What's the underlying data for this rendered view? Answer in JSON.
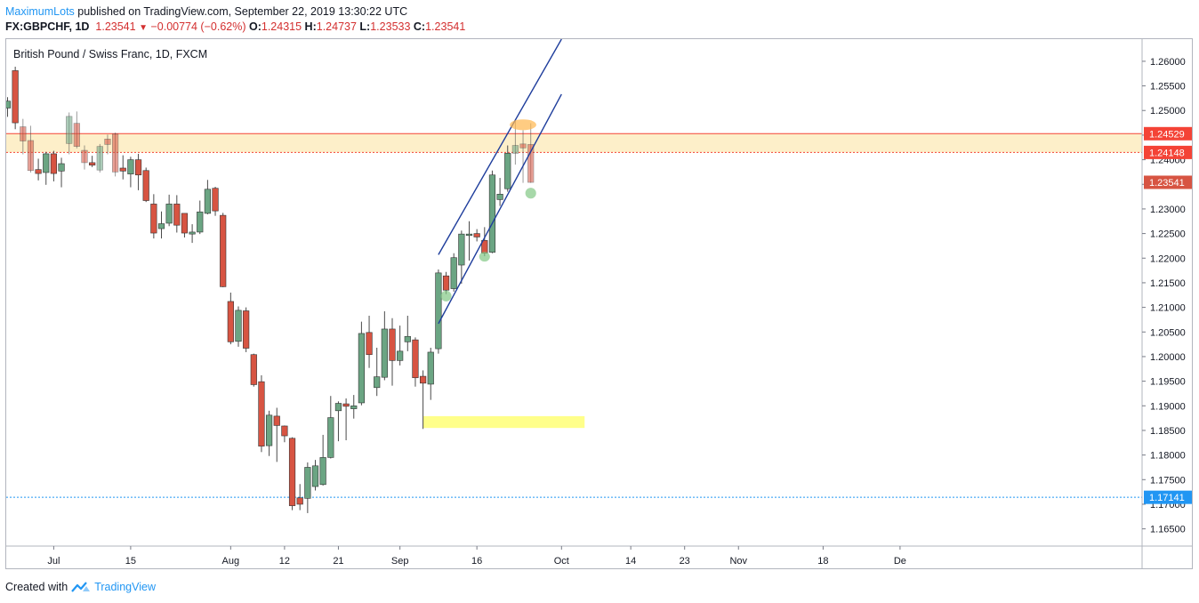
{
  "header": {
    "author": "MaximumLots",
    "published_text": "published on TradingView.com, September 22, 2019 13:30:22 UTC",
    "symbol": "FX:GBPCHF, 1D",
    "last": "1.23541",
    "change": "−0.00774 (−0.62%)",
    "o_label": "O:",
    "o_value": "1.24315",
    "h_label": "H:",
    "h_value": "1.24737",
    "l_label": "L:",
    "l_value": "1.23533",
    "c_label": "C:",
    "c_value": "1.23541"
  },
  "footer": {
    "created_with": "Created with",
    "brand": "TradingView"
  },
  "colors": {
    "up": "#6ba583",
    "down": "#d75442",
    "zone": "#fdefc9",
    "channel": "#1e3d9c",
    "resistance": "#f44336",
    "support": "#2196f3",
    "target": "#ffff8a",
    "highlight_orange": "#ffb74d",
    "highlight_green": "#81c784"
  },
  "chart_data": {
    "type": "candlestick",
    "title": "British Pound / Swiss Franc, 1D, FXCM",
    "ylim": [
      1.1615,
      1.2645
    ],
    "y_ticks": [
      "1.26000",
      "1.25500",
      "1.25000",
      "1.24500",
      "1.24000",
      "1.23500",
      "1.23000",
      "1.22500",
      "1.22000",
      "1.21500",
      "1.21000",
      "1.20500",
      "1.20000",
      "1.19500",
      "1.19000",
      "1.18500",
      "1.18000",
      "1.17500",
      "1.17000",
      "1.16500"
    ],
    "x_ticks": [
      {
        "label": "Jul",
        "date": "2019-07-01"
      },
      {
        "label": "15",
        "date": "2019-07-15"
      },
      {
        "label": "Aug",
        "date": "2019-08-01"
      },
      {
        "label": "12",
        "date": "2019-08-12"
      },
      {
        "label": "21",
        "date": "2019-08-21"
      },
      {
        "label": "Sep",
        "date": "2019-09-02"
      },
      {
        "label": "16",
        "date": "2019-09-16"
      },
      {
        "label": "Oct",
        "date": "2019-10-01"
      },
      {
        "label": "14",
        "date": "2019-10-14"
      },
      {
        "label": "23",
        "date": "2019-10-23"
      },
      {
        "label": "Nov",
        "date": "2019-11-01"
      },
      {
        "label": "18",
        "date": "2019-11-18"
      },
      {
        "label": "De",
        "date": "2019-12-02"
      }
    ],
    "candles": [
      {
        "d": "2019-06-21",
        "o": 1.2505,
        "h": 1.2527,
        "l": 1.2487,
        "c": 1.2519
      },
      {
        "d": "2019-06-24",
        "o": 1.2581,
        "h": 1.2589,
        "l": 1.2462,
        "c": 1.2475
      },
      {
        "d": "2019-06-25",
        "o": 1.2467,
        "h": 1.2483,
        "l": 1.2411,
        "c": 1.2438
      },
      {
        "d": "2019-06-26",
        "o": 1.2439,
        "h": 1.2469,
        "l": 1.2374,
        "c": 1.2378
      },
      {
        "d": "2019-06-27",
        "o": 1.238,
        "h": 1.2402,
        "l": 1.2358,
        "c": 1.2372
      },
      {
        "d": "2019-06-28",
        "o": 1.2374,
        "h": 1.2416,
        "l": 1.2349,
        "c": 1.2412
      },
      {
        "d": "2019-07-01",
        "o": 1.2412,
        "h": 1.2418,
        "l": 1.2356,
        "c": 1.2372
      },
      {
        "d": "2019-07-02",
        "o": 1.2377,
        "h": 1.2404,
        "l": 1.2344,
        "c": 1.2392
      },
      {
        "d": "2019-07-03",
        "o": 1.2433,
        "h": 1.2496,
        "l": 1.2411,
        "c": 1.2488
      },
      {
        "d": "2019-07-04",
        "o": 1.2474,
        "h": 1.2498,
        "l": 1.2423,
        "c": 1.2427
      },
      {
        "d": "2019-07-05",
        "o": 1.2419,
        "h": 1.2429,
        "l": 1.238,
        "c": 1.2394
      },
      {
        "d": "2019-07-08",
        "o": 1.2394,
        "h": 1.2408,
        "l": 1.2385,
        "c": 1.2389
      },
      {
        "d": "2019-07-09",
        "o": 1.2379,
        "h": 1.2432,
        "l": 1.2374,
        "c": 1.2427
      },
      {
        "d": "2019-07-10",
        "o": 1.2442,
        "h": 1.2451,
        "l": 1.2411,
        "c": 1.2431
      },
      {
        "d": "2019-07-11",
        "o": 1.2452,
        "h": 1.2455,
        "l": 1.2366,
        "c": 1.2375
      },
      {
        "d": "2019-07-12",
        "o": 1.2383,
        "h": 1.2409,
        "l": 1.236,
        "c": 1.2377
      },
      {
        "d": "2019-07-15",
        "o": 1.2371,
        "h": 1.2406,
        "l": 1.2344,
        "c": 1.24
      },
      {
        "d": "2019-07-16",
        "o": 1.24,
        "h": 1.2412,
        "l": 1.2338,
        "c": 1.2369
      },
      {
        "d": "2019-07-17",
        "o": 1.2378,
        "h": 1.2384,
        "l": 1.2314,
        "c": 1.2317
      },
      {
        "d": "2019-07-18",
        "o": 1.231,
        "h": 1.233,
        "l": 1.224,
        "c": 1.2251
      },
      {
        "d": "2019-07-19",
        "o": 1.226,
        "h": 1.2295,
        "l": 1.224,
        "c": 1.227
      },
      {
        "d": "2019-07-22",
        "o": 1.2271,
        "h": 1.2329,
        "l": 1.2265,
        "c": 1.231
      },
      {
        "d": "2019-07-23",
        "o": 1.231,
        "h": 1.2328,
        "l": 1.2252,
        "c": 1.2267
      },
      {
        "d": "2019-07-24",
        "o": 1.2291,
        "h": 1.229,
        "l": 1.2242,
        "c": 1.2251
      },
      {
        "d": "2019-07-25",
        "o": 1.2249,
        "h": 1.2269,
        "l": 1.2231,
        "c": 1.2253
      },
      {
        "d": "2019-07-26",
        "o": 1.2253,
        "h": 1.2317,
        "l": 1.2249,
        "c": 1.2294
      },
      {
        "d": "2019-07-29",
        "o": 1.2291,
        "h": 1.2359,
        "l": 1.2289,
        "c": 1.234
      },
      {
        "d": "2019-07-30",
        "o": 1.2342,
        "h": 1.2345,
        "l": 1.2286,
        "c": 1.2296
      },
      {
        "d": "2019-07-31",
        "o": 1.2287,
        "h": 1.2292,
        "l": 1.2141,
        "c": 1.2142
      },
      {
        "d": "2019-08-01",
        "o": 1.2112,
        "h": 1.213,
        "l": 1.2025,
        "c": 1.203
      },
      {
        "d": "2019-08-02",
        "o": 1.2031,
        "h": 1.2102,
        "l": 1.202,
        "c": 1.2094
      },
      {
        "d": "2019-08-05",
        "o": 1.2093,
        "h": 1.21,
        "l": 1.2009,
        "c": 1.2017
      },
      {
        "d": "2019-08-06",
        "o": 1.2004,
        "h": 1.2006,
        "l": 1.1939,
        "c": 1.1943
      },
      {
        "d": "2019-08-07",
        "o": 1.1949,
        "h": 1.1962,
        "l": 1.1806,
        "c": 1.1818
      },
      {
        "d": "2019-08-08",
        "o": 1.1819,
        "h": 1.189,
        "l": 1.1798,
        "c": 1.1881
      },
      {
        "d": "2019-08-09",
        "o": 1.1879,
        "h": 1.1896,
        "l": 1.1786,
        "c": 1.186
      },
      {
        "d": "2019-08-12",
        "o": 1.1859,
        "h": 1.186,
        "l": 1.1826,
        "c": 1.1839
      },
      {
        "d": "2019-08-13",
        "o": 1.1834,
        "h": 1.1836,
        "l": 1.1688,
        "c": 1.1697
      },
      {
        "d": "2019-08-14",
        "o": 1.1713,
        "h": 1.1741,
        "l": 1.1688,
        "c": 1.17
      },
      {
        "d": "2019-08-15",
        "o": 1.1712,
        "h": 1.1785,
        "l": 1.1682,
        "c": 1.1775
      },
      {
        "d": "2019-08-16",
        "o": 1.1736,
        "h": 1.179,
        "l": 1.1728,
        "c": 1.1778
      },
      {
        "d": "2019-08-19",
        "o": 1.174,
        "h": 1.1841,
        "l": 1.1738,
        "c": 1.1795
      },
      {
        "d": "2019-08-20",
        "o": 1.1795,
        "h": 1.192,
        "l": 1.1793,
        "c": 1.1876
      },
      {
        "d": "2019-08-21",
        "o": 1.189,
        "h": 1.1909,
        "l": 1.1828,
        "c": 1.1905
      },
      {
        "d": "2019-08-22",
        "o": 1.1904,
        "h": 1.1915,
        "l": 1.183,
        "c": 1.1899
      },
      {
        "d": "2019-08-23",
        "o": 1.1894,
        "h": 1.1922,
        "l": 1.1874,
        "c": 1.19
      },
      {
        "d": "2019-08-26",
        "o": 1.1906,
        "h": 1.2071,
        "l": 1.1901,
        "c": 1.2047
      },
      {
        "d": "2019-08-27",
        "o": 1.2049,
        "h": 1.2083,
        "l": 1.1977,
        "c": 1.2004
      },
      {
        "d": "2019-08-28",
        "o": 1.1937,
        "h": 1.2018,
        "l": 1.192,
        "c": 1.1959
      },
      {
        "d": "2019-08-29",
        "o": 1.1958,
        "h": 1.2092,
        "l": 1.1952,
        "c": 1.2056
      },
      {
        "d": "2019-08-30",
        "o": 1.2056,
        "h": 1.2078,
        "l": 1.1941,
        "c": 1.1992
      },
      {
        "d": "2019-09-02",
        "o": 1.1992,
        "h": 1.2063,
        "l": 1.1982,
        "c": 1.2011
      },
      {
        "d": "2019-09-03",
        "o": 1.203,
        "h": 1.2083,
        "l": 1.2011,
        "c": 1.2041
      },
      {
        "d": "2019-09-04",
        "o": 1.2034,
        "h": 1.2039,
        "l": 1.1939,
        "c": 1.1957
      },
      {
        "d": "2019-09-05",
        "o": 1.196,
        "h": 1.1972,
        "l": 1.1853,
        "c": 1.1946
      },
      {
        "d": "2019-09-06",
        "o": 1.1944,
        "h": 1.2018,
        "l": 1.1912,
        "c": 1.2009
      },
      {
        "d": "2019-09-09",
        "o": 1.2016,
        "h": 1.2177,
        "l": 1.2006,
        "c": 1.217
      },
      {
        "d": "2019-09-10",
        "o": 1.2164,
        "h": 1.2172,
        "l": 1.2127,
        "c": 1.2135
      },
      {
        "d": "2019-09-11",
        "o": 1.2138,
        "h": 1.221,
        "l": 1.2132,
        "c": 1.2201
      },
      {
        "d": "2019-09-12",
        "o": 1.2186,
        "h": 1.2256,
        "l": 1.2148,
        "c": 1.2249
      },
      {
        "d": "2019-09-13",
        "o": 1.2246,
        "h": 1.2275,
        "l": 1.2195,
        "c": 1.2249
      },
      {
        "d": "2019-09-16",
        "o": 1.225,
        "h": 1.2259,
        "l": 1.2234,
        "c": 1.2243
      },
      {
        "d": "2019-09-17",
        "o": 1.2236,
        "h": 1.2263,
        "l": 1.2204,
        "c": 1.221
      },
      {
        "d": "2019-09-18",
        "o": 1.2212,
        "h": 1.2378,
        "l": 1.221,
        "c": 1.2369
      },
      {
        "d": "2019-09-19",
        "o": 1.2319,
        "h": 1.2363,
        "l": 1.2306,
        "c": 1.233
      },
      {
        "d": "2019-09-20",
        "o": 1.2341,
        "h": 1.2429,
        "l": 1.2335,
        "c": 1.2413
      },
      {
        "d": "2019-09-23",
        "o": 1.2413,
        "h": 1.2479,
        "l": 1.239,
        "c": 1.2429
      },
      {
        "d": "2019-09-24",
        "o": 1.2432,
        "h": 1.246,
        "l": 1.2353,
        "c": 1.2424
      },
      {
        "d": "2019-09-25",
        "o": 1.2431,
        "h": 1.2474,
        "l": 1.2353,
        "c": 1.2354
      }
    ],
    "zone": {
      "from_date": "2019-06-21",
      "to_date": "2019-12-31",
      "low": 1.24148,
      "high": 1.24529
    },
    "horizontal_lines": [
      {
        "price": 1.24529,
        "label": "1.24529",
        "style": "solid",
        "color": "#f44336"
      },
      {
        "price": 1.24148,
        "label": "1.24148",
        "style": "dotted",
        "color": "#f44336"
      },
      {
        "price": 1.17141,
        "label": "1.17141",
        "style": "dotted",
        "color": "#2196f3"
      }
    ],
    "last_price_label": "1.23541",
    "last_price": 1.23541,
    "channel_lines": [
      {
        "d1": "2019-09-09",
        "p1": 1.2207,
        "d2": "2019-10-01",
        "p2": 1.2645
      },
      {
        "d1": "2019-09-09",
        "p1": 1.2067,
        "d2": "2019-10-01",
        "p2": 1.2533
      }
    ],
    "target_box": {
      "from_date": "2019-09-05",
      "to_date": "2019-10-04",
      "low": 1.1855,
      "high": 1.1879
    },
    "highlight_ellipses": [
      {
        "d": "2019-09-24",
        "p": 1.2471,
        "rx_days": 1.5,
        "ry_price": 0.0011,
        "color": "orange"
      },
      {
        "d": "2019-09-10",
        "p": 1.2123,
        "rx_days": 0.7,
        "ry_price": 0.0011,
        "color": "green"
      },
      {
        "d": "2019-09-17",
        "p": 1.2203,
        "rx_days": 0.7,
        "ry_price": 0.001,
        "color": "green"
      },
      {
        "d": "2019-09-25",
        "p": 1.2332,
        "rx_days": 0.7,
        "ry_price": 0.0011,
        "color": "green"
      }
    ]
  }
}
